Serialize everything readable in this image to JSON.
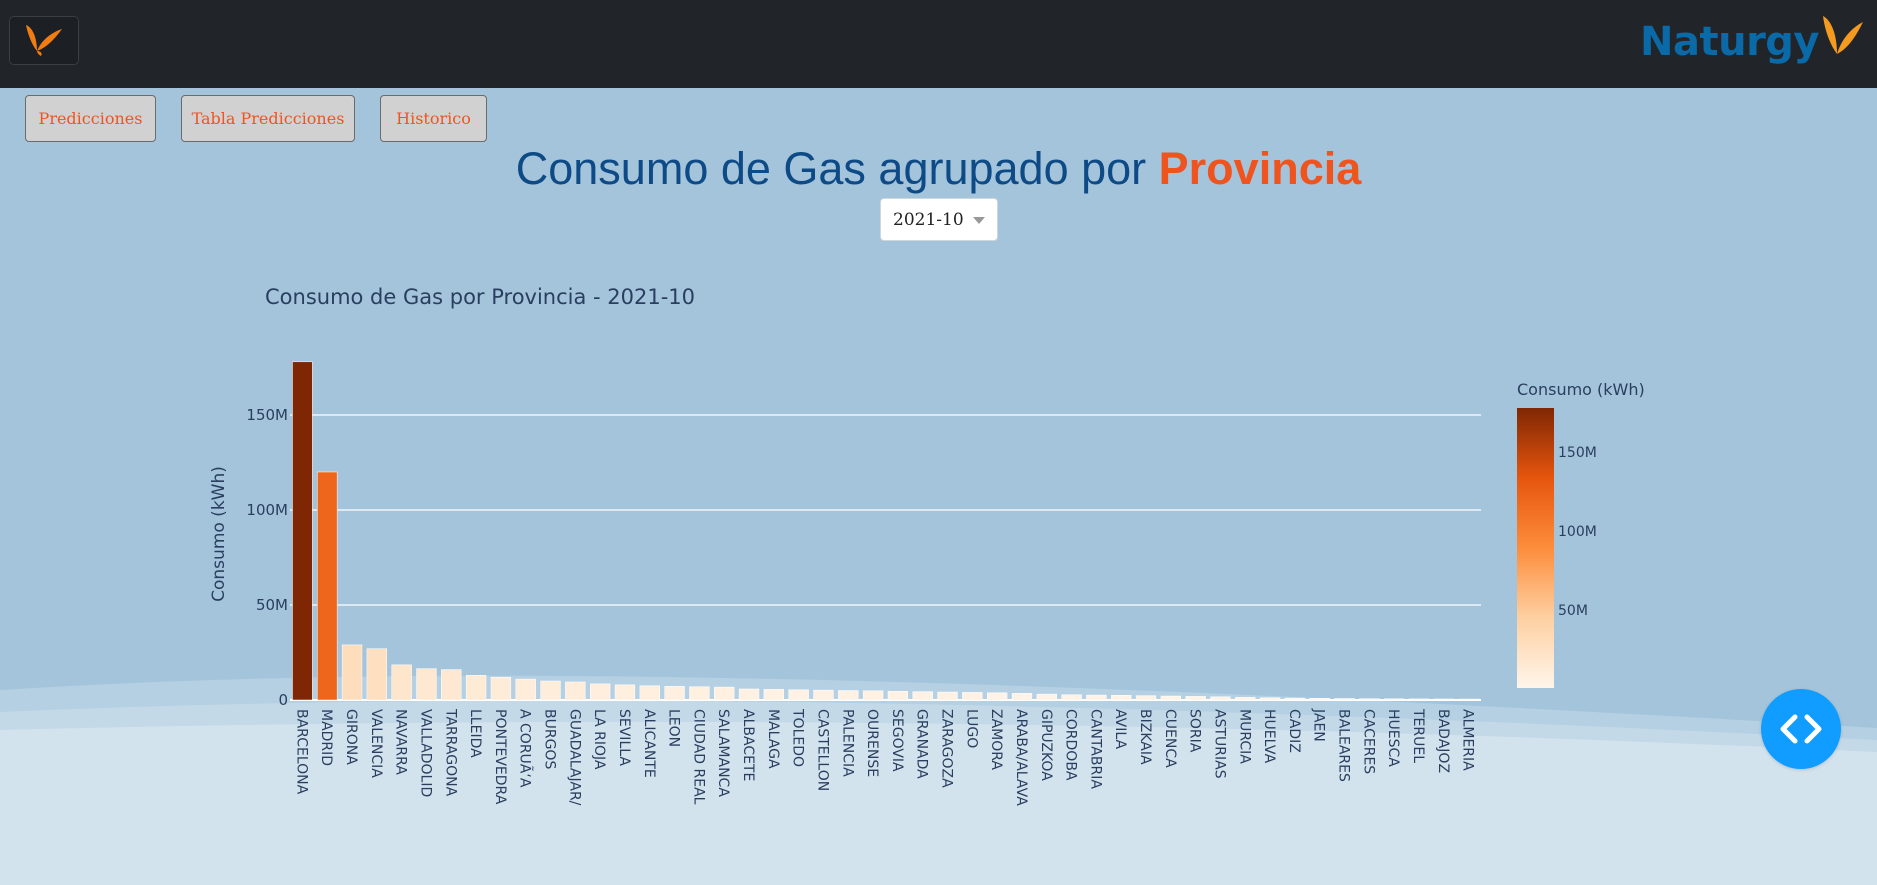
{
  "brand": {
    "name": "Naturgy",
    "color": "#0a6aa8",
    "logo_icon": "butterfly-logo-icon"
  },
  "nav": {
    "buttons": [
      {
        "label": "Predicciones"
      },
      {
        "label": "Tabla Predicciones"
      },
      {
        "label": "Historico"
      }
    ]
  },
  "page": {
    "title_main": "Consumo de Gas agrupado por ",
    "title_accent": "Provincia",
    "selected_month": "2021-10"
  },
  "colors": {
    "topbar": "#212429",
    "accent": "#f0541e",
    "title_blue": "#0d4a86",
    "background": "#a3c4db",
    "code_button": "#119dff"
  },
  "chart_data": {
    "type": "bar",
    "title": "Consumo de Gas por Provincia - 2021-10",
    "xlabel": "",
    "ylabel": "Consumo (kWh)",
    "ylim": [
      0,
      180000000
    ],
    "y_ticks": [
      0,
      50000000,
      100000000,
      150000000
    ],
    "y_tick_labels": [
      "0",
      "50M",
      "100M",
      "150M"
    ],
    "grid": true,
    "colorscale": {
      "title": "Consumo (kWh)",
      "colors": [
        "#fff5eb",
        "#fdd0a2",
        "#fd8d3c",
        "#e6550d",
        "#7f2704"
      ],
      "ticks": [
        50000000,
        100000000,
        150000000
      ],
      "tick_labels": [
        "50M",
        "100M",
        "150M"
      ]
    },
    "categories": [
      "BARCELONA",
      "MADRID",
      "GIRONA",
      "VALENCIA",
      "NAVARRA",
      "VALLADOLID",
      "TARRAGONA",
      "LLEIDA",
      "PONTEVEDRA",
      "A CORUÃ‘A",
      "BURGOS",
      "GUADALAJAR/",
      "LA RIOJA",
      "SEVILLA",
      "ALICANTE",
      "LEON",
      "CIUDAD REAL",
      "SALAMANCA",
      "ALBACETE",
      "MALAGA",
      "TOLEDO",
      "CASTELLON",
      "PALENCIA",
      "OURENSE",
      "SEGOVIA",
      "GRANADA",
      "ZARAGOZA",
      "LUGO",
      "ZAMORA",
      "ARABA/ALAVA",
      "GIPUZKOA",
      "CORDOBA",
      "CANTABRIA",
      "AVILA",
      "BIZKAIA",
      "CUENCA",
      "SORIA",
      "ASTURIAS",
      "MURCIA",
      "HUELVA",
      "CADIZ",
      "JAEN",
      "BALEARES",
      "CACERES",
      "HUESCA",
      "TERUEL",
      "BADAJOZ",
      "ALMERIA"
    ],
    "values": [
      178000000,
      120000000,
      29000000,
      27000000,
      18500000,
      16500000,
      16000000,
      13000000,
      12000000,
      11000000,
      10000000,
      9500000,
      8500000,
      8000000,
      7500000,
      7200000,
      7000000,
      6800000,
      5800000,
      5600000,
      5400000,
      5200000,
      5000000,
      4900000,
      4600000,
      4400000,
      4200000,
      4000000,
      3800000,
      3500000,
      3100000,
      2800000,
      2600000,
      2500000,
      2300000,
      2100000,
      1900000,
      1700000,
      1400000,
      1200000,
      1000000,
      900000,
      800000,
      700000,
      650000,
      600000,
      550000,
      500000
    ]
  }
}
